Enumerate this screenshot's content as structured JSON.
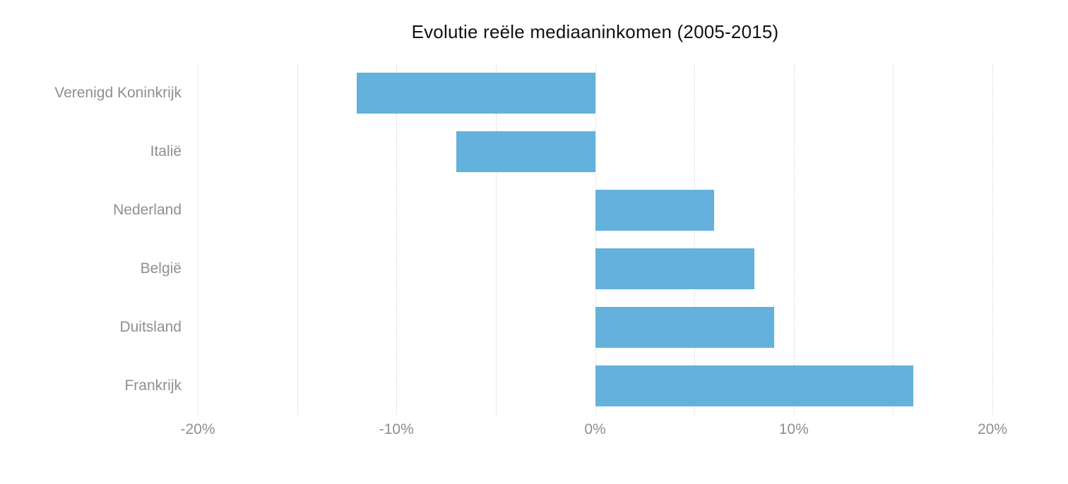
{
  "chart_data": {
    "type": "bar",
    "orientation": "horizontal",
    "title": "Evolutie reële mediaaninkomen (2005-2015)",
    "categories": [
      "Verenigd Koninkrijk",
      "Italië",
      "Nederland",
      "België",
      "Duitsland",
      "Frankrijk"
    ],
    "values": [
      -12,
      -7,
      6,
      8,
      9,
      16
    ],
    "value_unit": "%",
    "xlabel": "",
    "ylabel": "",
    "xlim": [
      -20,
      20
    ],
    "xticks": [
      -20,
      -10,
      0,
      10,
      20
    ],
    "xtick_labels": [
      "-20%",
      "-10%",
      "0%",
      "10%",
      "20%"
    ],
    "gridline_step": 5,
    "grid": "vertical-dotted",
    "legend_position": "none",
    "colors": {
      "bar": "#63b1dc",
      "gridline": "#d4d4d4",
      "axis_label": "#8f8f8f",
      "title": "#111111",
      "background": "#ffffff"
    }
  }
}
